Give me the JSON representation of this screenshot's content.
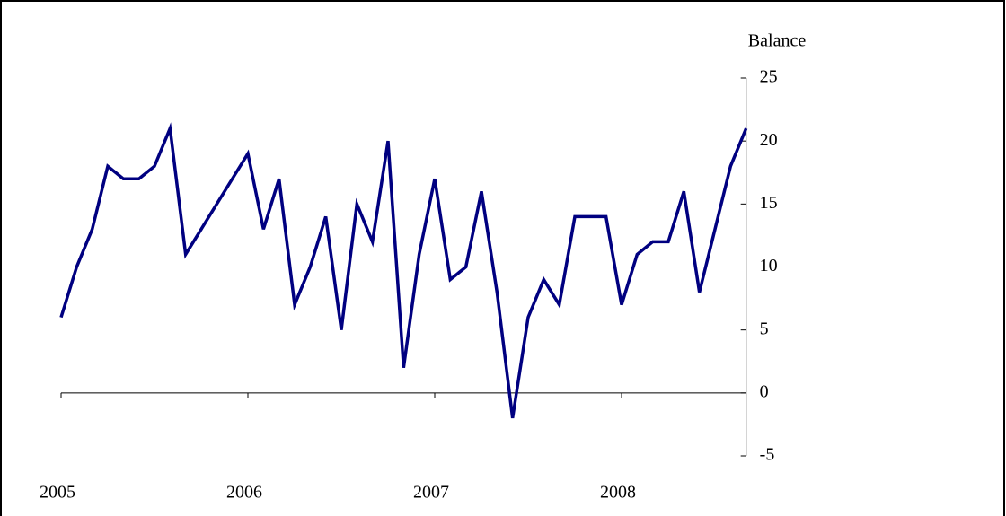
{
  "chart_data": {
    "type": "line",
    "y_axis_label": "Balance",
    "categories": [
      "2005",
      null,
      null,
      null,
      null,
      null,
      null,
      null,
      null,
      null,
      null,
      null,
      "2006",
      null,
      null,
      null,
      null,
      null,
      null,
      null,
      null,
      null,
      null,
      null,
      "2007",
      null,
      null,
      null,
      null,
      null,
      null,
      null,
      null,
      null,
      null,
      null,
      "2008",
      null,
      null,
      null,
      null,
      null,
      null,
      null,
      null
    ],
    "series": [
      {
        "name": "Balance",
        "color": "#000080",
        "values": [
          6,
          10,
          13,
          18,
          17,
          17,
          18,
          21,
          11,
          13,
          15,
          17,
          19,
          13,
          17,
          7,
          10,
          14,
          5,
          15,
          12,
          20,
          2,
          11,
          17,
          9,
          10,
          16,
          8,
          -2,
          6,
          9,
          7,
          14,
          14,
          14,
          7,
          11,
          12,
          12,
          16,
          8,
          13,
          18,
          21
        ]
      }
    ],
    "ylim": [
      -5,
      25
    ],
    "yticks": [
      -5,
      0,
      5,
      10,
      15,
      20,
      25
    ],
    "y_axis_side": "right",
    "grid": false
  }
}
